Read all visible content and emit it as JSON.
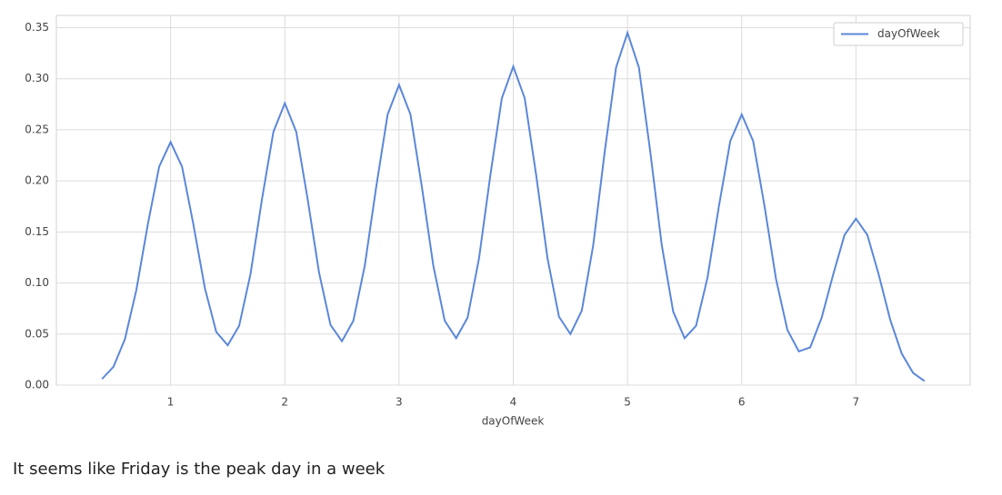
{
  "chart_data": {
    "type": "line",
    "xlabel": "dayOfWeek",
    "x": [
      0.4,
      0.5,
      0.6,
      0.7,
      0.8,
      0.9,
      1.0,
      1.1,
      1.2,
      1.3,
      1.4,
      1.5,
      1.6,
      1.7,
      1.8,
      1.9,
      2.0,
      2.1,
      2.2,
      2.3,
      2.4,
      2.5,
      2.6,
      2.7,
      2.8,
      2.9,
      3.0,
      3.1,
      3.2,
      3.3,
      3.4,
      3.5,
      3.6,
      3.7,
      3.8,
      3.9,
      4.0,
      4.1,
      4.2,
      4.3,
      4.4,
      4.5,
      4.6,
      4.7,
      4.8,
      4.9,
      5.0,
      5.1,
      5.2,
      5.3,
      5.4,
      5.5,
      5.6,
      5.7,
      5.8,
      5.9,
      6.0,
      6.1,
      6.2,
      6.3,
      6.4,
      6.5,
      6.6,
      6.7,
      6.8,
      6.9,
      7.0,
      7.1,
      7.2,
      7.3,
      7.4,
      7.5,
      7.6
    ],
    "series": [
      {
        "name": "dayOfWeek",
        "color": "#5b87d9",
        "values": [
          0.006,
          0.018,
          0.045,
          0.093,
          0.157,
          0.214,
          0.238,
          0.214,
          0.157,
          0.095,
          0.052,
          0.039,
          0.058,
          0.109,
          0.182,
          0.248,
          0.276,
          0.248,
          0.182,
          0.11,
          0.059,
          0.043,
          0.063,
          0.117,
          0.194,
          0.265,
          0.294,
          0.265,
          0.194,
          0.117,
          0.063,
          0.046,
          0.066,
          0.124,
          0.206,
          0.281,
          0.312,
          0.281,
          0.206,
          0.124,
          0.067,
          0.05,
          0.073,
          0.137,
          0.228,
          0.311,
          0.345,
          0.311,
          0.228,
          0.137,
          0.072,
          0.046,
          0.058,
          0.105,
          0.175,
          0.239,
          0.265,
          0.239,
          0.175,
          0.104,
          0.054,
          0.033,
          0.037,
          0.066,
          0.108,
          0.147,
          0.163,
          0.147,
          0.108,
          0.064,
          0.031,
          0.012,
          0.004
        ]
      }
    ],
    "xlim": [
      0,
      8
    ],
    "xticks": [
      1,
      2,
      3,
      4,
      5,
      6,
      7
    ],
    "ylim": [
      0,
      0.362
    ],
    "yticks": [
      {
        "value": 0,
        "label": "0.00"
      },
      0.05,
      {
        "value": 0.1,
        "label": "0.10"
      },
      0.15,
      {
        "value": 0.2,
        "label": "0.20"
      },
      0.25,
      {
        "value": 0.3,
        "label": "0.30"
      },
      0.35
    ],
    "grid": true,
    "legend": "upper right"
  },
  "caption": "It seems like Friday is the peak day in a week"
}
